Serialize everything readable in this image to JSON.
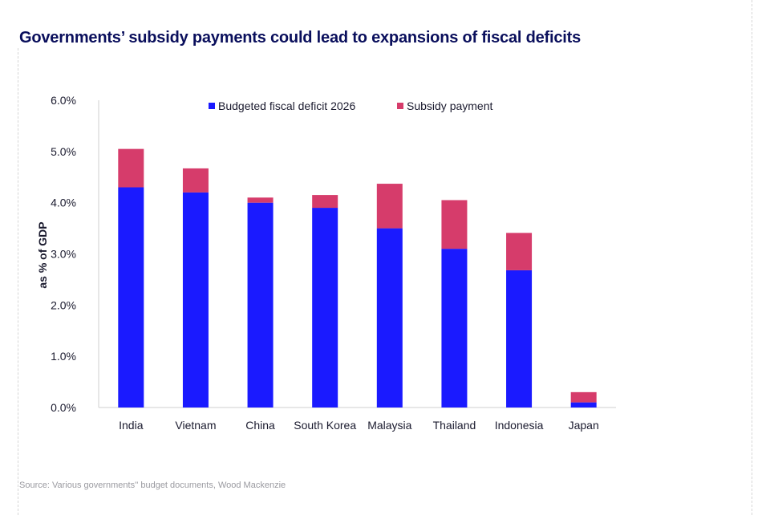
{
  "title": "Governments’ subsidy payments could lead to expansions of fiscal deficits",
  "source": "Source: Various governments'' budget documents, Wood Mackenzie",
  "colors": {
    "budgeted": "#1a1aff",
    "subsidy": "#d63c6b",
    "title": "#0a0f5c",
    "axis_text": "#1a1a2e"
  },
  "chart_data": {
    "type": "bar",
    "stacked": true,
    "categories": [
      "India",
      "Vietnam",
      "China",
      "South Korea",
      "Malaysia",
      "Thailand",
      "Indonesia",
      "Japan"
    ],
    "series": [
      {
        "name": "Budgeted fiscal deficit 2026",
        "values": [
          4.3,
          4.2,
          4.0,
          3.9,
          3.5,
          3.1,
          2.68,
          0.1
        ]
      },
      {
        "name": "Subsidy payment",
        "values": [
          0.75,
          0.47,
          0.1,
          0.25,
          0.87,
          0.95,
          0.73,
          0.2
        ]
      }
    ],
    "ylabel": "as % of GDP",
    "ylim": [
      0,
      6
    ],
    "yticks": [
      "0.0%",
      "1.0%",
      "2.0%",
      "3.0%",
      "4.0%",
      "5.0%",
      "6.0%"
    ],
    "legend_position": "top"
  }
}
